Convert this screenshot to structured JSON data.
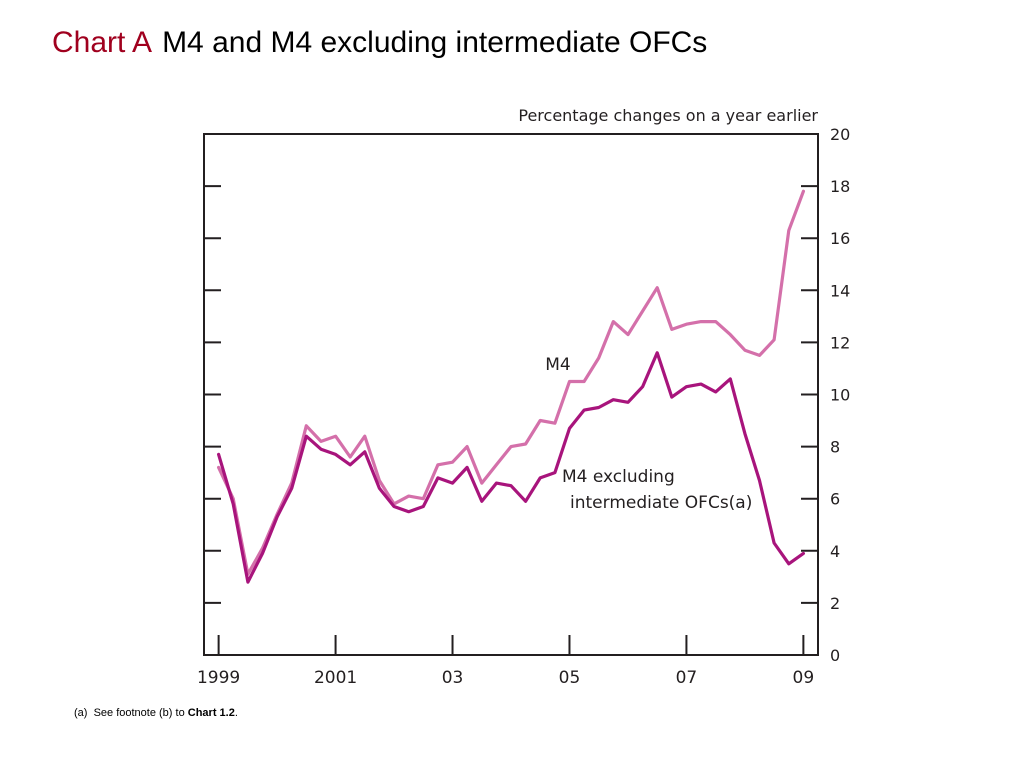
{
  "slide": {
    "title_prefix": "Chart A",
    "title": "M4 and M4 excluding intermediate OFCs"
  },
  "footnote": {
    "marker": "(a)",
    "text": "See footnote (b) to",
    "ref": "Chart 1.2",
    "end": "."
  },
  "colors": {
    "title_prefix": "#a0001e",
    "m4": "#d470aa",
    "m4_excl": "#a8147c",
    "axis": "#231f20"
  },
  "chart_data": {
    "type": "line",
    "title": "",
    "units_label": "Percentage changes on a year earlier",
    "xlabel": "",
    "ylabel": "",
    "ylim": [
      0,
      20
    ],
    "yticks": [
      0,
      2,
      4,
      6,
      8,
      10,
      12,
      14,
      16,
      18,
      20
    ],
    "xlim": [
      1998.75,
      2009.25
    ],
    "xticks": [
      {
        "value": 1999,
        "label": "1999"
      },
      {
        "value": 2001,
        "label": "2001"
      },
      {
        "value": 2003,
        "label": "03"
      },
      {
        "value": 2005,
        "label": "05"
      },
      {
        "value": 2007,
        "label": "07"
      },
      {
        "value": 2009,
        "label": "09"
      }
    ],
    "grid": false,
    "series": [
      {
        "name": "M4",
        "label_lines": [
          "M4"
        ],
        "x": [
          1999.0,
          1999.25,
          1999.5,
          1999.75,
          2000.0,
          2000.25,
          2000.5,
          2000.75,
          2001.0,
          2001.25,
          2001.5,
          2001.75,
          2002.0,
          2002.25,
          2002.5,
          2002.75,
          2003.0,
          2003.25,
          2003.5,
          2003.75,
          2004.0,
          2004.25,
          2004.5,
          2004.75,
          2005.0,
          2005.25,
          2005.5,
          2005.75,
          2006.0,
          2006.25,
          2006.5,
          2006.75,
          2007.0,
          2007.25,
          2007.5,
          2007.75,
          2008.0,
          2008.25,
          2008.5,
          2008.75,
          2009.0
        ],
        "values": [
          7.2,
          6.0,
          3.1,
          4.1,
          5.4,
          6.6,
          8.8,
          8.2,
          8.4,
          7.6,
          8.4,
          6.7,
          5.8,
          6.1,
          6.0,
          7.3,
          7.4,
          8.0,
          6.6,
          7.3,
          8.0,
          8.1,
          9.0,
          8.9,
          10.5,
          10.5,
          11.4,
          12.8,
          12.3,
          13.2,
          14.1,
          12.5,
          12.7,
          12.8,
          12.8,
          12.3,
          11.7,
          11.5,
          12.1,
          16.3,
          17.8
        ]
      },
      {
        "name": "M4 excluding intermediate OFCs(a)",
        "label_lines": [
          "M4 excluding",
          "intermediate OFCs(a)"
        ],
        "x": [
          1999.0,
          1999.25,
          1999.5,
          1999.75,
          2000.0,
          2000.25,
          2000.5,
          2000.75,
          2001.0,
          2001.25,
          2001.5,
          2001.75,
          2002.0,
          2002.25,
          2002.5,
          2002.75,
          2003.0,
          2003.25,
          2003.5,
          2003.75,
          2004.0,
          2004.25,
          2004.5,
          2004.75,
          2005.0,
          2005.25,
          2005.5,
          2005.75,
          2006.0,
          2006.25,
          2006.5,
          2006.75,
          2007.0,
          2007.25,
          2007.5,
          2007.75,
          2008.0,
          2008.25,
          2008.5,
          2008.75,
          2009.0
        ],
        "values": [
          7.7,
          5.8,
          2.8,
          3.9,
          5.3,
          6.4,
          8.4,
          7.9,
          7.7,
          7.3,
          7.8,
          6.4,
          5.7,
          5.5,
          5.7,
          6.8,
          6.6,
          7.2,
          5.9,
          6.6,
          6.5,
          5.9,
          6.8,
          7.0,
          8.7,
          9.4,
          9.5,
          9.8,
          9.7,
          10.3,
          11.6,
          9.9,
          10.3,
          10.4,
          10.1,
          10.6,
          8.5,
          6.7,
          4.3,
          3.5,
          3.9
        ]
      }
    ]
  }
}
